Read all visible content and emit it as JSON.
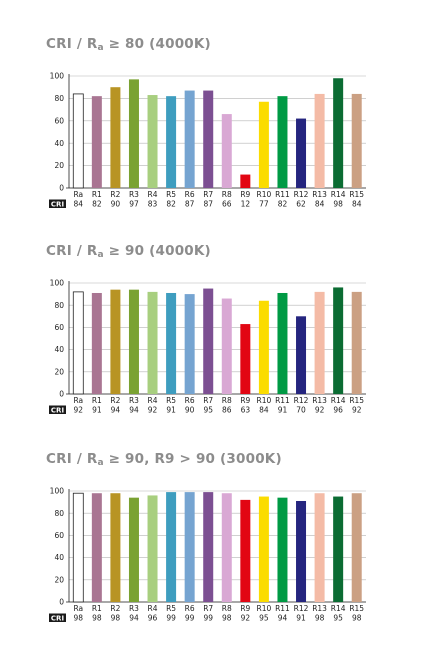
{
  "colors": {
    "Ra": "#ffffff",
    "R1": "#a97592",
    "R2": "#b89424",
    "R3": "#7aa232",
    "R4": "#a8cf7f",
    "R5": "#3e9dbf",
    "R6": "#75a4d1",
    "R7": "#7c4f92",
    "R8": "#d9a8d4",
    "R9": "#e20613",
    "R10": "#fbdc00",
    "R11": "#009a44",
    "R12": "#25257f",
    "R13": "#f4bba6",
    "R14": "#0b6c33",
    "R15": "#cba083"
  },
  "cri_label": "CRI",
  "chart_data": [
    {
      "type": "bar",
      "title_main": "CRI / R",
      "title_sub": "a",
      "title_rest": " ≥ 80 (4000K)",
      "categories": [
        "Ra",
        "R1",
        "R2",
        "R3",
        "R4",
        "R5",
        "R6",
        "R7",
        "R8",
        "R9",
        "R10",
        "R11",
        "R12",
        "R13",
        "R14",
        "R15"
      ],
      "values": [
        84,
        82,
        90,
        97,
        83,
        82,
        87,
        87,
        66,
        12,
        77,
        82,
        62,
        84,
        98,
        84
      ],
      "ylim": [
        0,
        100
      ],
      "yticks": [
        0,
        20,
        40,
        60,
        80,
        100
      ],
      "grid": true
    },
    {
      "type": "bar",
      "title_main": "CRI / R",
      "title_sub": "a",
      "title_rest": " ≥ 90 (4000K)",
      "categories": [
        "Ra",
        "R1",
        "R2",
        "R3",
        "R4",
        "R5",
        "R6",
        "R7",
        "R8",
        "R9",
        "R10",
        "R11",
        "R12",
        "R13",
        "R14",
        "R15"
      ],
      "values": [
        92,
        91,
        94,
        94,
        92,
        91,
        90,
        95,
        86,
        63,
        84,
        91,
        70,
        92,
        96,
        92
      ],
      "ylim": [
        0,
        100
      ],
      "yticks": [
        0,
        20,
        40,
        60,
        80,
        100
      ],
      "grid": true
    },
    {
      "type": "bar",
      "title_main": "CRI / R",
      "title_sub": "a",
      "title_rest": " ≥ 90, R9 > 90 (3000K)",
      "categories": [
        "Ra",
        "R1",
        "R2",
        "R3",
        "R4",
        "R5",
        "R6",
        "R7",
        "R8",
        "R9",
        "R10",
        "R11",
        "R12",
        "R13",
        "R14",
        "R15"
      ],
      "values": [
        98,
        98,
        98,
        94,
        96,
        99,
        99,
        99,
        98,
        92,
        95,
        94,
        91,
        98,
        95,
        98
      ],
      "ylim": [
        0,
        100
      ],
      "yticks": [
        0,
        20,
        40,
        60,
        80,
        100
      ],
      "grid": true
    }
  ]
}
